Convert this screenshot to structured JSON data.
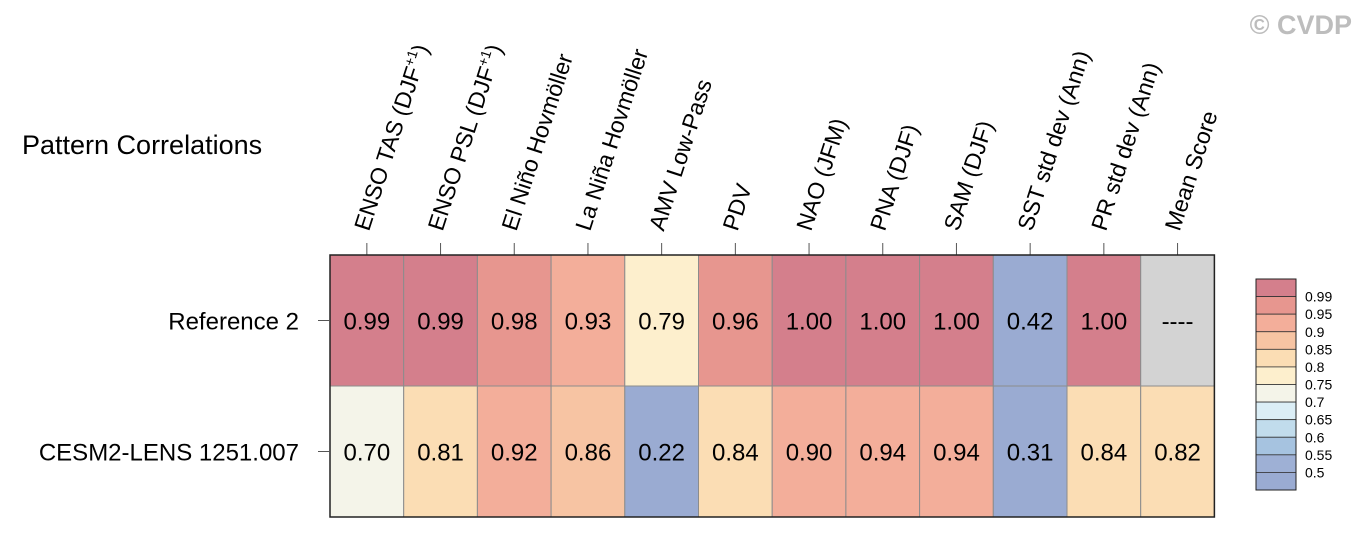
{
  "watermark": "© CVDP",
  "chart_data": {
    "type": "heatmap",
    "title": "Pattern Correlations",
    "columns": [
      "ENSO TAS (DJF+1)",
      "ENSO PSL (DJF+1)",
      "El Niño Hovmöller",
      "La Niña Hovmöller",
      "AMV Low-Pass",
      "PDV",
      "NAO (JFM)",
      "PNA (DJF)",
      "SAM (DJF)",
      "SST std dev (Ann)",
      "PR std dev (Ann)",
      "Mean Score"
    ],
    "rows": [
      {
        "name": "Reference 2",
        "labels": [
          "0.99",
          "0.99",
          "0.98",
          "0.93",
          "0.79",
          "0.96",
          "1.00",
          "1.00",
          "1.00",
          "0.42",
          "1.00",
          "----"
        ],
        "values": [
          0.99,
          0.99,
          0.98,
          0.93,
          0.79,
          0.96,
          1.0,
          1.0,
          1.0,
          0.42,
          1.0,
          null
        ]
      },
      {
        "name": "CESM2-LENS 1251.007",
        "labels": [
          "0.70",
          "0.81",
          "0.92",
          "0.86",
          "0.22",
          "0.84",
          "0.90",
          "0.94",
          "0.94",
          "0.31",
          "0.84",
          "0.82"
        ],
        "values": [
          0.7,
          0.81,
          0.92,
          0.86,
          0.22,
          0.84,
          0.9,
          0.94,
          0.94,
          0.31,
          0.84,
          0.82
        ]
      }
    ],
    "missing_color": "#d3d3d3",
    "colorbar": {
      "tick_labels": [
        "0.99",
        "0.95",
        "0.9",
        "0.85",
        "0.8",
        "0.75",
        "0.7",
        "0.65",
        "0.6",
        "0.55",
        "0.5"
      ],
      "thresholds": [
        0.99,
        0.95,
        0.9,
        0.85,
        0.8,
        0.75,
        0.7,
        0.65,
        0.6,
        0.55,
        0.5
      ],
      "colors": [
        "#d47f8c",
        "#e7968f",
        "#f3ae9a",
        "#f7c4a3",
        "#fbddb4",
        "#fdefcd",
        "#f4f4e9",
        "#dbeef6",
        "#c1dcec",
        "#a6c3e0",
        "#9eb0d5",
        "#9aabd2"
      ]
    }
  }
}
